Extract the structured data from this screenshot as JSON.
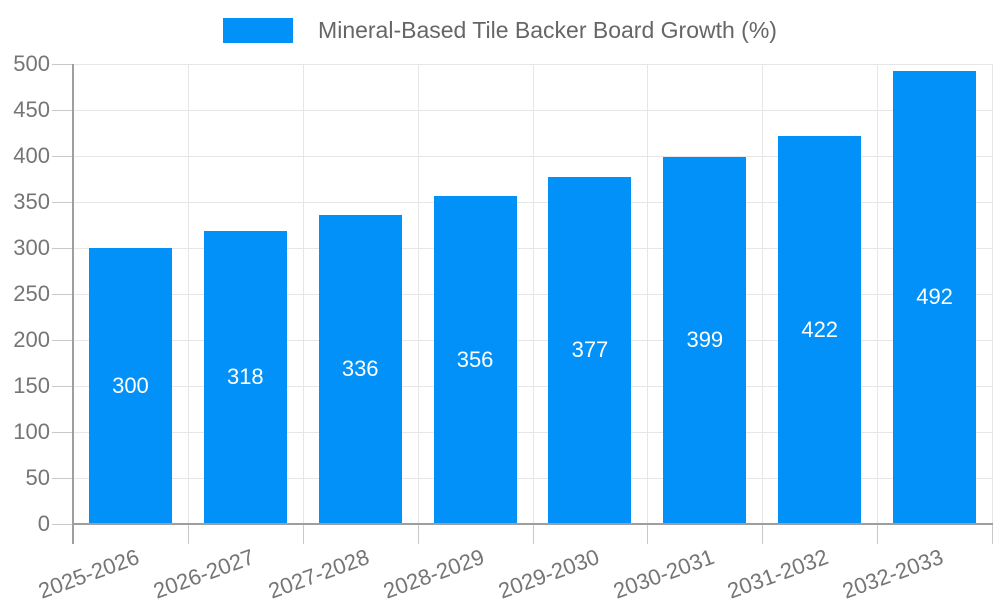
{
  "legend": {
    "label": "Mineral-Based Tile Backer Board Growth (%)"
  },
  "colors": {
    "bar": "#0291f8",
    "grid": "#e6e6e6",
    "axis": "#9e9e9e",
    "tick": "#c9c9c9",
    "axis_label": "#757575",
    "legend_label": "#666666",
    "value_label": "#ffffff",
    "background": "#ffffff"
  },
  "chart_data": {
    "type": "bar",
    "title": "Mineral-Based Tile Backer Board Growth (%)",
    "categories": [
      "2025-2026",
      "2026-2027",
      "2027-2028",
      "2028-2029",
      "2029-2030",
      "2030-2031",
      "2031-2032",
      "2032-2033"
    ],
    "values": [
      300,
      318,
      336,
      356,
      377,
      399,
      422,
      492
    ],
    "yticks": [
      0,
      50,
      100,
      150,
      200,
      250,
      300,
      350,
      400,
      450,
      500
    ],
    "ylim": [
      0,
      500
    ],
    "ytick_step": 50,
    "xlabel": "",
    "ylabel": "",
    "grid": true,
    "legend_position": "top-center",
    "value_label_style": "white-centered-inside-bar",
    "x_label_rotation_deg": -20
  }
}
